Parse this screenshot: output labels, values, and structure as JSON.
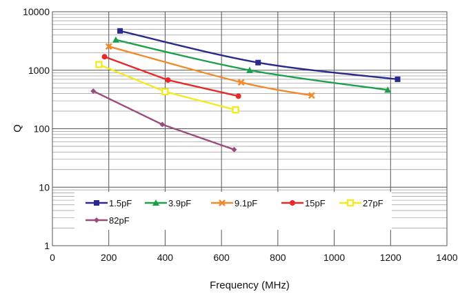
{
  "chart_data": {
    "type": "line",
    "title": "",
    "xlabel": "Frequency (MHz)",
    "ylabel": "Q",
    "xlim": [
      0,
      1400
    ],
    "ylim": [
      1,
      10000
    ],
    "yscale": "log",
    "grid": true,
    "legend_position": "bottom-inside",
    "x_ticks": [
      "0",
      "200",
      "400",
      "600",
      "800",
      "1000",
      "1200",
      "1400"
    ],
    "y_ticks": [
      "1",
      "10",
      "100",
      "1000",
      "10000"
    ],
    "series": [
      {
        "name": "1.5pF",
        "color": "#2a2a8c",
        "marker": "square",
        "x": [
          240,
          730,
          1225
        ],
        "y": [
          4700,
          1350,
          700
        ]
      },
      {
        "name": "3.9pF",
        "color": "#1aa04a",
        "marker": "triangle",
        "x": [
          225,
          700,
          1190
        ],
        "y": [
          3300,
          1000,
          460
        ]
      },
      {
        "name": "9.1pF",
        "color": "#f08a2a",
        "marker": "x",
        "x": [
          200,
          670,
          920
        ],
        "y": [
          2550,
          620,
          370
        ]
      },
      {
        "name": "15pF",
        "color": "#e8282a",
        "marker": "circle",
        "x": [
          185,
          410,
          660
        ],
        "y": [
          1700,
          680,
          360
        ]
      },
      {
        "name": "27pF",
        "color": "#f4ea20",
        "marker": "open-square",
        "x": [
          165,
          400,
          650
        ],
        "y": [
          1250,
          430,
          210
        ]
      },
      {
        "name": "82pF",
        "color": "#9c4a7c",
        "marker": "diamond",
        "x": [
          145,
          390,
          645
        ],
        "y": [
          440,
          118,
          44
        ]
      }
    ]
  }
}
